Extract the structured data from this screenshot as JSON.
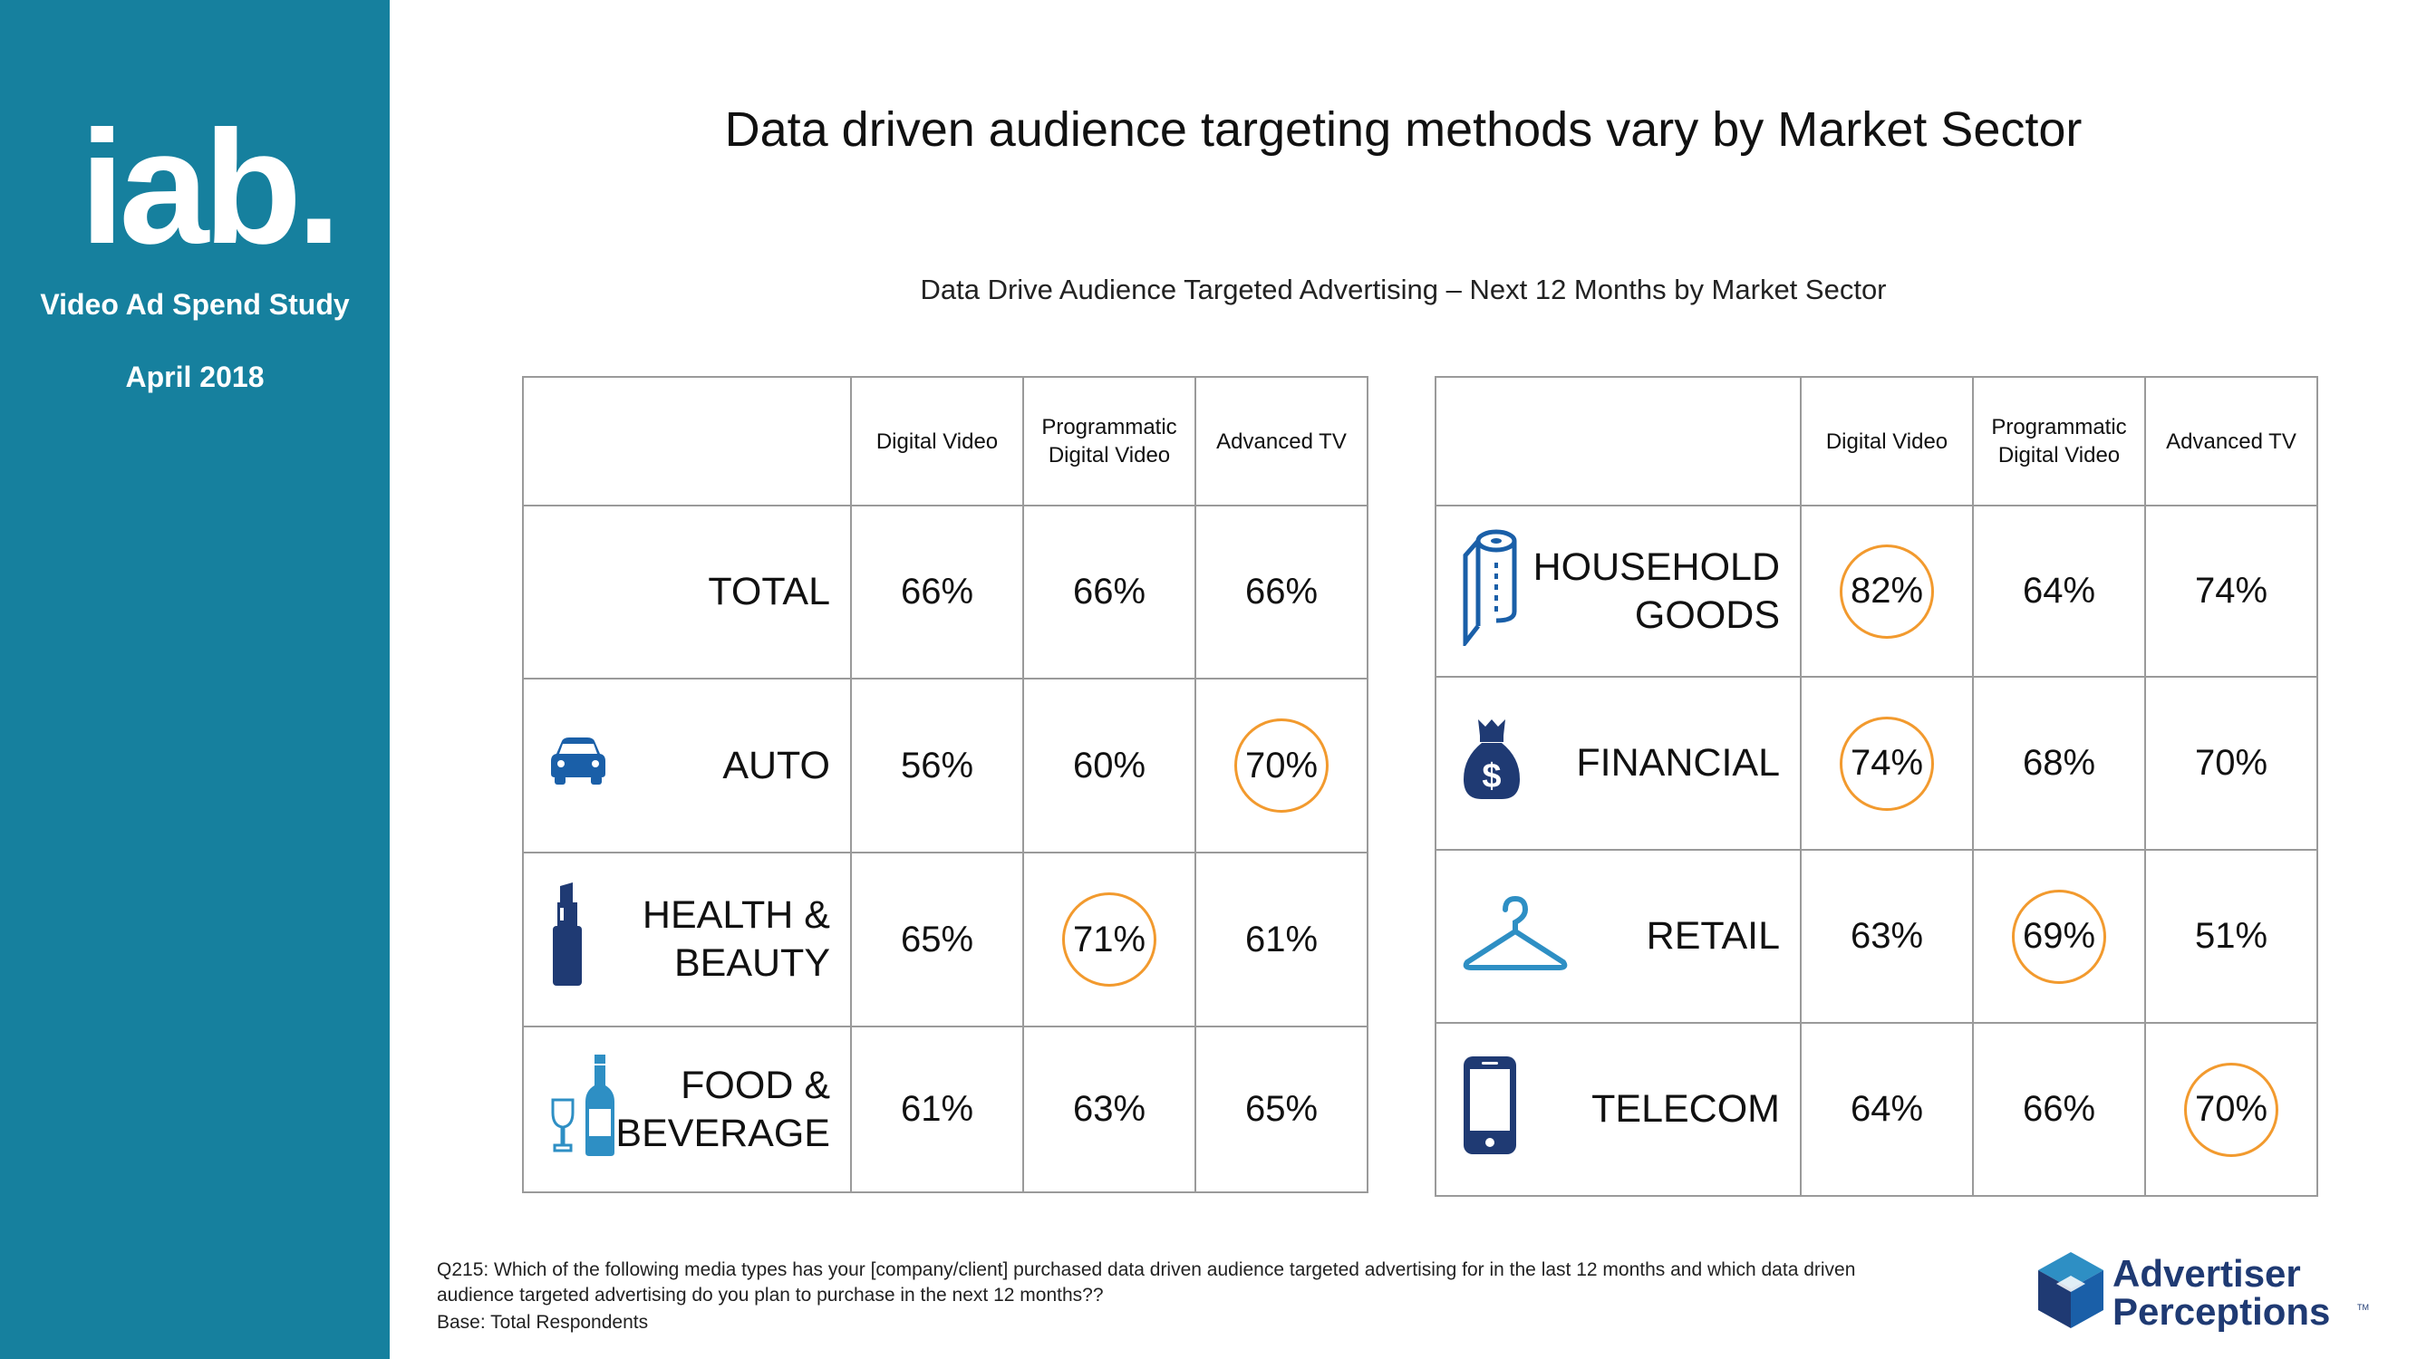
{
  "sidebar": {
    "logo_text": "iab.",
    "study": "Video Ad Spend Study",
    "date": "April 2018"
  },
  "title": "Data driven audience targeting methods vary by Market Sector",
  "chart_data": {
    "type": "table",
    "subtitle": "Data Drive Audience Targeted Advertising – Next 12 Months by Market Sector",
    "columns": [
      "Digital Video",
      "Programmatic\nDigital Video",
      "Advanced TV"
    ],
    "tables": [
      {
        "rows": [
          {
            "sector": "TOTAL",
            "icon": "none",
            "values": [
              "66%",
              "66%",
              "66%"
            ],
            "highlight": [
              false,
              false,
              false
            ]
          },
          {
            "sector": "AUTO",
            "icon": "car-icon",
            "values": [
              "56%",
              "60%",
              "70%"
            ],
            "highlight": [
              false,
              false,
              true
            ]
          },
          {
            "sector": "HEALTH &\nBEAUTY",
            "icon": "lipstick-icon",
            "values": [
              "65%",
              "71%",
              "61%"
            ],
            "highlight": [
              false,
              true,
              false
            ]
          },
          {
            "sector": "FOOD &\nBEVERAGE",
            "icon": "wine-bottle-icon",
            "values": [
              "61%",
              "63%",
              "65%"
            ],
            "highlight": [
              false,
              false,
              false
            ]
          }
        ]
      },
      {
        "rows": [
          {
            "sector": "HOUSEHOLD\nGOODS",
            "icon": "paper-towel-icon",
            "values": [
              "82%",
              "64%",
              "74%"
            ],
            "highlight": [
              true,
              false,
              false
            ]
          },
          {
            "sector": "FINANCIAL",
            "icon": "money-bag-icon",
            "values": [
              "74%",
              "68%",
              "70%"
            ],
            "highlight": [
              true,
              false,
              false
            ]
          },
          {
            "sector": "RETAIL",
            "icon": "hanger-icon",
            "values": [
              "63%",
              "69%",
              "51%"
            ],
            "highlight": [
              false,
              true,
              false
            ]
          },
          {
            "sector": "TELECOM",
            "icon": "phone-icon",
            "values": [
              "64%",
              "66%",
              "70%"
            ],
            "highlight": [
              false,
              false,
              true
            ]
          }
        ]
      }
    ]
  },
  "footnote": "Q215: Which of the following media types has your [company/client] purchased data driven audience targeted advertising for in the last 12 months and which data driven audience targeted advertising do you plan to purchase in the next 12 months??",
  "base": "Base: Total Respondents",
  "brand": {
    "line1": "Advertiser",
    "line2": "Perceptions",
    "tm": "TM"
  },
  "colors": {
    "sidebar": "#16809e",
    "highlight": "#f29a2e",
    "navy": "#1f3a73",
    "blue": "#1a5fa8",
    "light_blue": "#2e8fc4"
  }
}
